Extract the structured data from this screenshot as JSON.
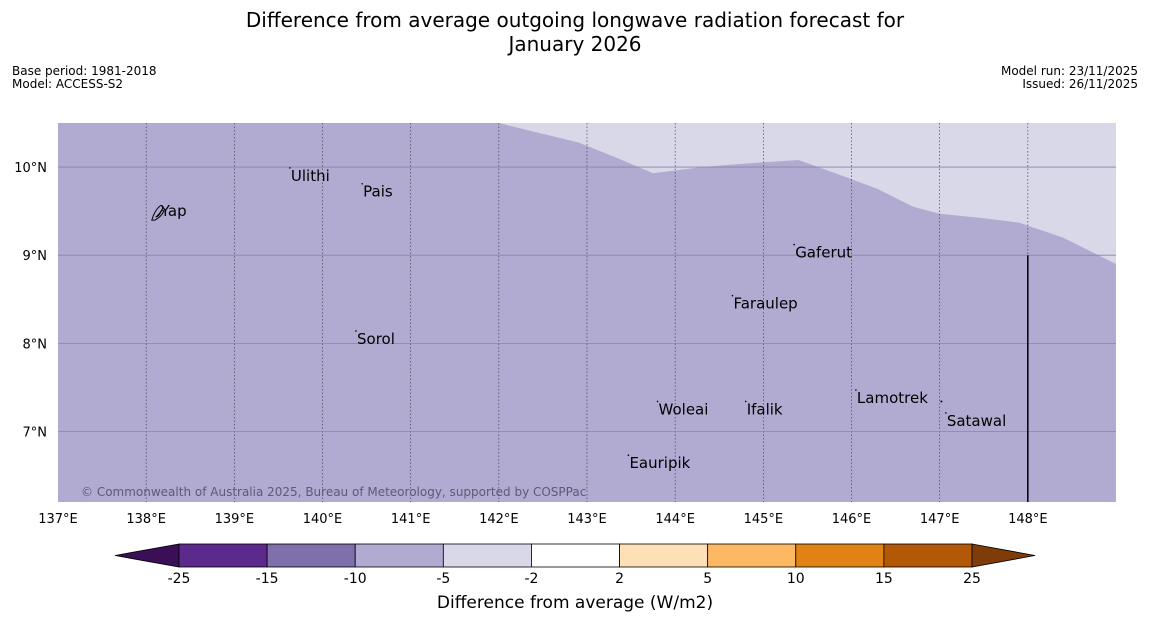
{
  "title_line1": "Difference from average outgoing longwave radiation forecast for",
  "title_line2": "January 2026",
  "base_period": "Base period: 1981-2018",
  "model": "Model: ACCESS-S2",
  "model_run": "Model run: 23/11/2025",
  "issued": "Issued: 26/11/2025",
  "copyright": "© Commonwealth of Australia 2025, Bureau of Meteorology, supported by COSPPac",
  "map": {
    "lon_range": [
      137,
      149
    ],
    "lat_range": [
      6.2,
      10.5
    ],
    "lon_ticks": [
      "137°E",
      "138°E",
      "139°E",
      "140°E",
      "141°E",
      "142°E",
      "143°E",
      "144°E",
      "145°E",
      "146°E",
      "147°E",
      "148°E"
    ],
    "lat_ticks": [
      "10°N",
      "9°N",
      "8°N",
      "7°N"
    ],
    "base_fill_color": "#b1abd2",
    "light_fill_color": "#d8d8e9",
    "light_region_boundary": [
      {
        "lon": 142.0,
        "lat": 10.5
      },
      {
        "lon": 142.4,
        "lat": 10.4
      },
      {
        "lon": 142.9,
        "lat": 10.28
      },
      {
        "lon": 143.3,
        "lat": 10.12
      },
      {
        "lon": 143.75,
        "lat": 9.93
      },
      {
        "lon": 144.3,
        "lat": 10.0
      },
      {
        "lon": 144.8,
        "lat": 10.04
      },
      {
        "lon": 145.4,
        "lat": 10.08
      },
      {
        "lon": 145.9,
        "lat": 9.9
      },
      {
        "lon": 146.3,
        "lat": 9.75
      },
      {
        "lon": 146.7,
        "lat": 9.55
      },
      {
        "lon": 147.0,
        "lat": 9.47
      },
      {
        "lon": 147.5,
        "lat": 9.42
      },
      {
        "lon": 147.9,
        "lat": 9.37
      },
      {
        "lon": 148.4,
        "lat": 9.2
      },
      {
        "lon": 149.0,
        "lat": 8.9
      }
    ],
    "boundary_segment": {
      "lon": 148.0,
      "lat_from": 9.0,
      "lat_to": 6.2
    },
    "places": [
      {
        "name": "Ulithi",
        "lon": 139.63,
        "lat": 9.9
      },
      {
        "name": "Pais",
        "lon": 140.45,
        "lat": 9.72
      },
      {
        "name": "Yap",
        "lon": 138.2,
        "lat": 9.5
      },
      {
        "name": "Gaferut",
        "lon": 145.35,
        "lat": 9.03
      },
      {
        "name": "Faraulep",
        "lon": 144.65,
        "lat": 8.45
      },
      {
        "name": "Sorol",
        "lon": 140.38,
        "lat": 8.05
      },
      {
        "name": "Lamotrek",
        "lon": 146.05,
        "lat": 7.38
      },
      {
        "name": "Woleai",
        "lon": 143.8,
        "lat": 7.25
      },
      {
        "name": "Ifalik",
        "lon": 144.8,
        "lat": 7.25
      },
      {
        "name": "Satawal",
        "lon": 147.07,
        "lat": 7.12
      },
      {
        "name": "Eauripik",
        "lon": 143.47,
        "lat": 6.64
      }
    ]
  },
  "colorbar": {
    "label": "Difference from average (W/m2)",
    "ticks": [
      "-25",
      "-15",
      "-10",
      "-5",
      "-2",
      "2",
      "5",
      "10",
      "15",
      "25"
    ],
    "colors": [
      "#3b0f57",
      "#5b2a8c",
      "#7f6faa",
      "#b1abd2",
      "#d8d8e9",
      "#ffffff",
      "#fee0b6",
      "#fdb863",
      "#e08214",
      "#b35806",
      "#7f3b08"
    ]
  }
}
